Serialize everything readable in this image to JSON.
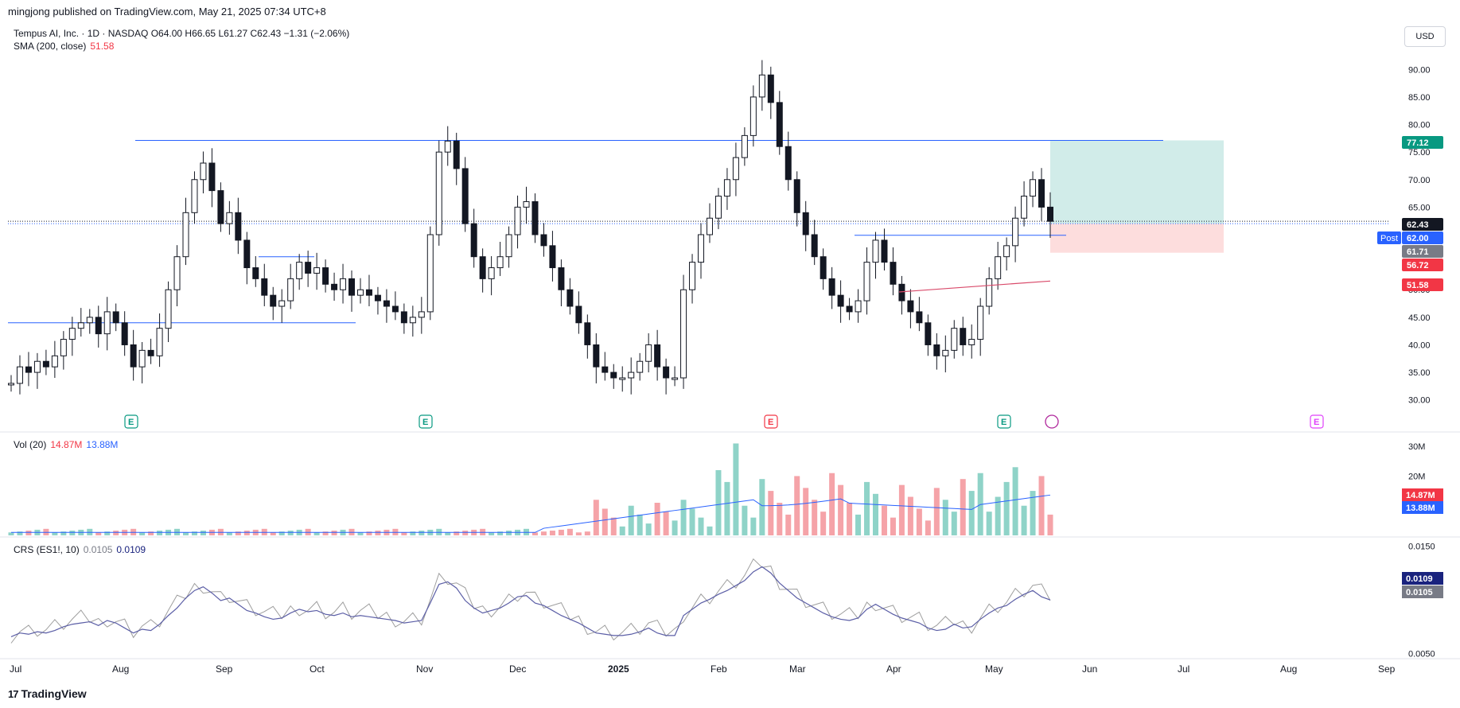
{
  "header": {
    "published": "mingjong published on TradingView.com, May 21, 2025 07:34 UTC+8",
    "symbol_line": "Tempus AI, Inc. · 1D · NASDAQ  O64.00  H66.65  L61.27  C62.43  −1.31 (−2.06%)",
    "sma_label": "SMA (200, close)",
    "sma_value": "51.58",
    "vol_label": "Vol (20)",
    "vol_value1": "14.87M",
    "vol_value2": "13.88M",
    "crs_label": "CRS (ES1!, 10)",
    "crs_value1": "0.0105",
    "crs_value2": "0.0109",
    "currency_button": "USD"
  },
  "brand": {
    "name": "TradingView",
    "mark": "17"
  },
  "colors": {
    "up": "#089981",
    "down": "#f23645",
    "candle_up_fill": "#ffffff",
    "candle_down_fill": "#131722",
    "hline": "#2962ff",
    "sma": "#d94a6a",
    "vol_up": "#8fd3c8",
    "vol_down": "#f5a3a8",
    "vol_ma": "#2962ff",
    "crs": "#9e9e9e",
    "crs_ma": "#5b5ea6",
    "target": "#b2dfdb",
    "stop": "#fcd5d5"
  },
  "chart_data": [
    {
      "type": "candlestick",
      "title": "Tempus AI, Inc. · 1D · NASDAQ",
      "x_ticks": [
        "Jul",
        "Aug",
        "Sep",
        "Oct",
        "Nov",
        "Dec",
        "2025",
        "Feb",
        "Mar",
        "Apr",
        "May",
        "Jun",
        "Jul",
        "Aug",
        "Sep"
      ],
      "y_ticks": [
        "30.00",
        "35.00",
        "40.00",
        "45.00",
        "50.00",
        "55.00",
        "60.00",
        "65.00",
        "70.00",
        "75.00",
        "80.00",
        "85.00",
        "90.00"
      ],
      "ylim": [
        27.5,
        92.5
      ],
      "ohlc": {
        "open": 64.0,
        "high": 66.65,
        "low": 61.27,
        "close": 62.43
      },
      "closes": [
        33,
        36,
        35,
        37,
        36,
        38,
        41,
        43,
        44,
        45,
        42,
        46,
        44,
        40,
        36,
        39,
        38,
        43,
        50,
        56,
        64,
        70,
        73,
        68,
        62,
        64,
        59,
        54,
        52,
        49,
        47,
        48,
        52,
        55,
        53,
        54,
        51,
        50,
        52,
        49,
        50,
        49,
        48,
        47,
        46,
        44,
        45,
        46,
        60,
        75,
        77,
        72,
        62,
        56,
        52,
        54,
        56,
        60,
        65,
        66,
        60,
        58,
        54,
        50,
        47,
        44,
        40,
        36,
        35,
        34,
        34,
        35,
        37,
        40,
        36,
        34,
        34,
        50,
        55,
        60,
        63,
        67,
        70,
        74,
        78,
        85,
        89,
        84,
        76,
        70,
        64,
        60,
        56,
        52,
        49,
        47,
        46,
        48,
        55,
        59,
        55,
        51,
        48,
        46,
        44,
        40,
        38,
        39,
        43,
        40,
        41,
        47,
        52,
        56,
        58,
        63,
        67,
        70,
        65,
        62.43
      ],
      "price_labels": [
        "77.12",
        "62.43",
        "62.00",
        "61.71",
        "56.72",
        "51.58"
      ],
      "post_label": "Post",
      "resistance": 77.12,
      "support_levels": [
        {
          "y": 44.0
        },
        {
          "y": 59.9
        },
        {
          "y": 56.0
        }
      ],
      "position": {
        "entry": 62.0,
        "target": 77.12,
        "stop": 56.72
      },
      "sma": {
        "start": 49.6,
        "end": 51.58
      },
      "event_markers": [
        "E",
        "E",
        "E",
        "E",
        "E"
      ]
    },
    {
      "type": "bar",
      "title": "Vol (20)",
      "y_ticks": [
        "30M",
        "20M"
      ],
      "labels": [
        "14.87M",
        "13.88M"
      ],
      "ylim": [
        0,
        33
      ]
    },
    {
      "type": "line",
      "title": "CRS (ES1!, 10)",
      "y_ticks": [
        "0.0150",
        "0.0050"
      ],
      "labels": [
        "0.0109",
        "0.0105"
      ],
      "ylim": [
        0.0045,
        0.0155
      ]
    }
  ]
}
